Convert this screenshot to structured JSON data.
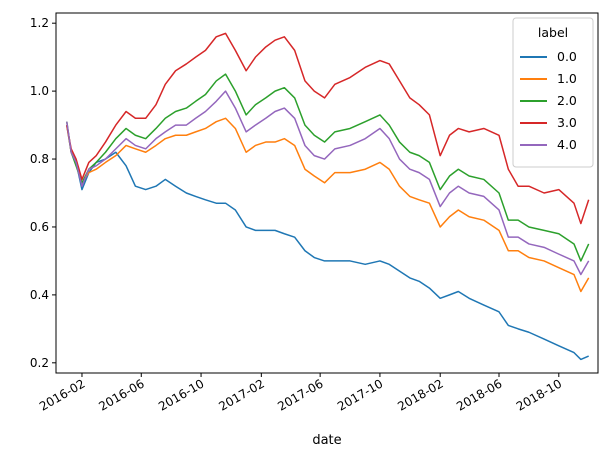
{
  "chart_data": {
    "type": "line",
    "title": "",
    "xlabel": "date",
    "ylabel": "",
    "x_ticks": [
      "2016-02",
      "2016-06",
      "2016-10",
      "2017-02",
      "2017-06",
      "2017-10",
      "2018-02",
      "2018-06",
      "2018-10"
    ],
    "y_ticks": [
      "0.2",
      "0.4",
      "0.6",
      "0.8",
      "1.0",
      "1.2"
    ],
    "xlim": [
      "2015-12-10",
      "2018-12-20"
    ],
    "ylim": [
      0.17,
      1.23
    ],
    "grid": false,
    "legend": {
      "title": "label",
      "placement": "top-right"
    },
    "series": [
      {
        "name": "0.0",
        "color": "#1f77b4",
        "points": [
          [
            "2016-01-01",
            0.9
          ],
          [
            "2016-01-10",
            0.82
          ],
          [
            "2016-01-20",
            0.79
          ],
          [
            "2016-02-01",
            0.71
          ],
          [
            "2016-02-15",
            0.76
          ],
          [
            "2016-03-01",
            0.79
          ],
          [
            "2016-03-20",
            0.8
          ],
          [
            "2016-04-10",
            0.82
          ],
          [
            "2016-05-01",
            0.78
          ],
          [
            "2016-05-20",
            0.72
          ],
          [
            "2016-06-10",
            0.71
          ],
          [
            "2016-07-01",
            0.72
          ],
          [
            "2016-07-20",
            0.74
          ],
          [
            "2016-08-10",
            0.72
          ],
          [
            "2016-09-01",
            0.7
          ],
          [
            "2016-09-20",
            0.69
          ],
          [
            "2016-10-10",
            0.68
          ],
          [
            "2016-11-01",
            0.67
          ],
          [
            "2016-11-20",
            0.67
          ],
          [
            "2016-12-10",
            0.65
          ],
          [
            "2017-01-01",
            0.6
          ],
          [
            "2017-01-20",
            0.59
          ],
          [
            "2017-02-10",
            0.59
          ],
          [
            "2017-03-01",
            0.59
          ],
          [
            "2017-03-20",
            0.58
          ],
          [
            "2017-04-10",
            0.57
          ],
          [
            "2017-05-01",
            0.53
          ],
          [
            "2017-05-20",
            0.51
          ],
          [
            "2017-06-10",
            0.5
          ],
          [
            "2017-07-01",
            0.5
          ],
          [
            "2017-08-01",
            0.5
          ],
          [
            "2017-09-01",
            0.49
          ],
          [
            "2017-10-01",
            0.5
          ],
          [
            "2017-10-20",
            0.49
          ],
          [
            "2017-11-10",
            0.47
          ],
          [
            "2017-12-01",
            0.45
          ],
          [
            "2017-12-20",
            0.44
          ],
          [
            "2018-01-10",
            0.42
          ],
          [
            "2018-02-01",
            0.39
          ],
          [
            "2018-02-20",
            0.4
          ],
          [
            "2018-03-10",
            0.41
          ],
          [
            "2018-04-01",
            0.39
          ],
          [
            "2018-05-01",
            0.37
          ],
          [
            "2018-06-01",
            0.35
          ],
          [
            "2018-06-20",
            0.31
          ],
          [
            "2018-07-10",
            0.3
          ],
          [
            "2018-08-01",
            0.29
          ],
          [
            "2018-09-01",
            0.27
          ],
          [
            "2018-10-01",
            0.25
          ],
          [
            "2018-11-01",
            0.23
          ],
          [
            "2018-11-15",
            0.21
          ],
          [
            "2018-12-01",
            0.22
          ]
        ]
      },
      {
        "name": "1.0",
        "color": "#ff7f0e",
        "points": [
          [
            "2016-01-01",
            0.9
          ],
          [
            "2016-01-10",
            0.82
          ],
          [
            "2016-01-20",
            0.79
          ],
          [
            "2016-02-01",
            0.73
          ],
          [
            "2016-02-15",
            0.76
          ],
          [
            "2016-03-01",
            0.77
          ],
          [
            "2016-03-20",
            0.79
          ],
          [
            "2016-04-10",
            0.81
          ],
          [
            "2016-05-01",
            0.84
          ],
          [
            "2016-05-20",
            0.83
          ],
          [
            "2016-06-10",
            0.82
          ],
          [
            "2016-07-01",
            0.84
          ],
          [
            "2016-07-20",
            0.86
          ],
          [
            "2016-08-10",
            0.87
          ],
          [
            "2016-09-01",
            0.87
          ],
          [
            "2016-09-20",
            0.88
          ],
          [
            "2016-10-10",
            0.89
          ],
          [
            "2016-11-01",
            0.91
          ],
          [
            "2016-11-20",
            0.92
          ],
          [
            "2016-12-10",
            0.89
          ],
          [
            "2017-01-01",
            0.82
          ],
          [
            "2017-01-20",
            0.84
          ],
          [
            "2017-02-10",
            0.85
          ],
          [
            "2017-03-01",
            0.85
          ],
          [
            "2017-03-20",
            0.86
          ],
          [
            "2017-04-10",
            0.84
          ],
          [
            "2017-05-01",
            0.77
          ],
          [
            "2017-05-20",
            0.75
          ],
          [
            "2017-06-10",
            0.73
          ],
          [
            "2017-07-01",
            0.76
          ],
          [
            "2017-08-01",
            0.76
          ],
          [
            "2017-09-01",
            0.77
          ],
          [
            "2017-10-01",
            0.79
          ],
          [
            "2017-10-20",
            0.77
          ],
          [
            "2017-11-10",
            0.72
          ],
          [
            "2017-12-01",
            0.69
          ],
          [
            "2017-12-20",
            0.68
          ],
          [
            "2018-01-10",
            0.67
          ],
          [
            "2018-02-01",
            0.6
          ],
          [
            "2018-02-20",
            0.63
          ],
          [
            "2018-03-10",
            0.65
          ],
          [
            "2018-04-01",
            0.63
          ],
          [
            "2018-05-01",
            0.62
          ],
          [
            "2018-06-01",
            0.59
          ],
          [
            "2018-06-20",
            0.53
          ],
          [
            "2018-07-10",
            0.53
          ],
          [
            "2018-08-01",
            0.51
          ],
          [
            "2018-09-01",
            0.5
          ],
          [
            "2018-10-01",
            0.48
          ],
          [
            "2018-11-01",
            0.46
          ],
          [
            "2018-11-15",
            0.41
          ],
          [
            "2018-12-01",
            0.45
          ]
        ]
      },
      {
        "name": "2.0",
        "color": "#2ca02c",
        "points": [
          [
            "2016-01-01",
            0.91
          ],
          [
            "2016-01-10",
            0.82
          ],
          [
            "2016-01-20",
            0.78
          ],
          [
            "2016-02-01",
            0.73
          ],
          [
            "2016-02-15",
            0.77
          ],
          [
            "2016-03-01",
            0.79
          ],
          [
            "2016-03-20",
            0.82
          ],
          [
            "2016-04-10",
            0.86
          ],
          [
            "2016-05-01",
            0.89
          ],
          [
            "2016-05-20",
            0.87
          ],
          [
            "2016-06-10",
            0.86
          ],
          [
            "2016-07-01",
            0.89
          ],
          [
            "2016-07-20",
            0.92
          ],
          [
            "2016-08-10",
            0.94
          ],
          [
            "2016-09-01",
            0.95
          ],
          [
            "2016-09-20",
            0.97
          ],
          [
            "2016-10-10",
            0.99
          ],
          [
            "2016-11-01",
            1.03
          ],
          [
            "2016-11-20",
            1.05
          ],
          [
            "2016-12-10",
            1.0
          ],
          [
            "2017-01-01",
            0.93
          ],
          [
            "2017-01-20",
            0.96
          ],
          [
            "2017-02-10",
            0.98
          ],
          [
            "2017-03-01",
            1.0
          ],
          [
            "2017-03-20",
            1.01
          ],
          [
            "2017-04-10",
            0.98
          ],
          [
            "2017-05-01",
            0.9
          ],
          [
            "2017-05-20",
            0.87
          ],
          [
            "2017-06-10",
            0.85
          ],
          [
            "2017-07-01",
            0.88
          ],
          [
            "2017-08-01",
            0.89
          ],
          [
            "2017-09-01",
            0.91
          ],
          [
            "2017-10-01",
            0.93
          ],
          [
            "2017-10-20",
            0.9
          ],
          [
            "2017-11-10",
            0.85
          ],
          [
            "2017-12-01",
            0.82
          ],
          [
            "2017-12-20",
            0.81
          ],
          [
            "2018-01-10",
            0.79
          ],
          [
            "2018-02-01",
            0.71
          ],
          [
            "2018-02-20",
            0.75
          ],
          [
            "2018-03-10",
            0.77
          ],
          [
            "2018-04-01",
            0.75
          ],
          [
            "2018-05-01",
            0.74
          ],
          [
            "2018-06-01",
            0.7
          ],
          [
            "2018-06-20",
            0.62
          ],
          [
            "2018-07-10",
            0.62
          ],
          [
            "2018-08-01",
            0.6
          ],
          [
            "2018-09-01",
            0.59
          ],
          [
            "2018-10-01",
            0.58
          ],
          [
            "2018-11-01",
            0.55
          ],
          [
            "2018-11-15",
            0.5
          ],
          [
            "2018-12-01",
            0.55
          ]
        ]
      },
      {
        "name": "3.0",
        "color": "#d62728",
        "points": [
          [
            "2016-01-01",
            0.9
          ],
          [
            "2016-01-10",
            0.83
          ],
          [
            "2016-01-20",
            0.8
          ],
          [
            "2016-02-01",
            0.74
          ],
          [
            "2016-02-15",
            0.79
          ],
          [
            "2016-03-01",
            0.81
          ],
          [
            "2016-03-20",
            0.85
          ],
          [
            "2016-04-10",
            0.9
          ],
          [
            "2016-05-01",
            0.94
          ],
          [
            "2016-05-20",
            0.92
          ],
          [
            "2016-06-10",
            0.92
          ],
          [
            "2016-07-01",
            0.96
          ],
          [
            "2016-07-20",
            1.02
          ],
          [
            "2016-08-10",
            1.06
          ],
          [
            "2016-09-01",
            1.08
          ],
          [
            "2016-09-20",
            1.1
          ],
          [
            "2016-10-10",
            1.12
          ],
          [
            "2016-11-01",
            1.16
          ],
          [
            "2016-11-20",
            1.17
          ],
          [
            "2016-12-10",
            1.12
          ],
          [
            "2017-01-01",
            1.06
          ],
          [
            "2017-01-20",
            1.1
          ],
          [
            "2017-02-10",
            1.13
          ],
          [
            "2017-03-01",
            1.15
          ],
          [
            "2017-03-20",
            1.16
          ],
          [
            "2017-04-10",
            1.12
          ],
          [
            "2017-05-01",
            1.03
          ],
          [
            "2017-05-20",
            1.0
          ],
          [
            "2017-06-10",
            0.98
          ],
          [
            "2017-07-01",
            1.02
          ],
          [
            "2017-08-01",
            1.04
          ],
          [
            "2017-09-01",
            1.07
          ],
          [
            "2017-10-01",
            1.09
          ],
          [
            "2017-10-20",
            1.08
          ],
          [
            "2017-11-10",
            1.03
          ],
          [
            "2017-12-01",
            0.98
          ],
          [
            "2017-12-20",
            0.96
          ],
          [
            "2018-01-10",
            0.93
          ],
          [
            "2018-02-01",
            0.81
          ],
          [
            "2018-02-20",
            0.87
          ],
          [
            "2018-03-10",
            0.89
          ],
          [
            "2018-04-01",
            0.88
          ],
          [
            "2018-05-01",
            0.89
          ],
          [
            "2018-06-01",
            0.87
          ],
          [
            "2018-06-20",
            0.77
          ],
          [
            "2018-07-10",
            0.72
          ],
          [
            "2018-08-01",
            0.72
          ],
          [
            "2018-09-01",
            0.7
          ],
          [
            "2018-10-01",
            0.71
          ],
          [
            "2018-11-01",
            0.67
          ],
          [
            "2018-11-15",
            0.61
          ],
          [
            "2018-12-01",
            0.68
          ]
        ]
      },
      {
        "name": "4.0",
        "color": "#9467bd",
        "points": [
          [
            "2016-01-01",
            0.91
          ],
          [
            "2016-01-10",
            0.82
          ],
          [
            "2016-01-20",
            0.79
          ],
          [
            "2016-02-01",
            0.72
          ],
          [
            "2016-02-15",
            0.77
          ],
          [
            "2016-03-01",
            0.78
          ],
          [
            "2016-03-20",
            0.8
          ],
          [
            "2016-04-10",
            0.83
          ],
          [
            "2016-05-01",
            0.86
          ],
          [
            "2016-05-20",
            0.84
          ],
          [
            "2016-06-10",
            0.83
          ],
          [
            "2016-07-01",
            0.86
          ],
          [
            "2016-07-20",
            0.88
          ],
          [
            "2016-08-10",
            0.9
          ],
          [
            "2016-09-01",
            0.9
          ],
          [
            "2016-09-20",
            0.92
          ],
          [
            "2016-10-10",
            0.94
          ],
          [
            "2016-11-01",
            0.97
          ],
          [
            "2016-11-20",
            1.0
          ],
          [
            "2016-12-10",
            0.95
          ],
          [
            "2017-01-01",
            0.88
          ],
          [
            "2017-01-20",
            0.9
          ],
          [
            "2017-02-10",
            0.92
          ],
          [
            "2017-03-01",
            0.94
          ],
          [
            "2017-03-20",
            0.95
          ],
          [
            "2017-04-10",
            0.92
          ],
          [
            "2017-05-01",
            0.84
          ],
          [
            "2017-05-20",
            0.81
          ],
          [
            "2017-06-10",
            0.8
          ],
          [
            "2017-07-01",
            0.83
          ],
          [
            "2017-08-01",
            0.84
          ],
          [
            "2017-09-01",
            0.86
          ],
          [
            "2017-10-01",
            0.89
          ],
          [
            "2017-10-20",
            0.86
          ],
          [
            "2017-11-10",
            0.8
          ],
          [
            "2017-12-01",
            0.77
          ],
          [
            "2017-12-20",
            0.76
          ],
          [
            "2018-01-10",
            0.74
          ],
          [
            "2018-02-01",
            0.66
          ],
          [
            "2018-02-20",
            0.7
          ],
          [
            "2018-03-10",
            0.72
          ],
          [
            "2018-04-01",
            0.7
          ],
          [
            "2018-05-01",
            0.69
          ],
          [
            "2018-06-01",
            0.65
          ],
          [
            "2018-06-20",
            0.57
          ],
          [
            "2018-07-10",
            0.57
          ],
          [
            "2018-08-01",
            0.55
          ],
          [
            "2018-09-01",
            0.54
          ],
          [
            "2018-10-01",
            0.52
          ],
          [
            "2018-11-01",
            0.5
          ],
          [
            "2018-11-15",
            0.46
          ],
          [
            "2018-12-01",
            0.5
          ]
        ]
      }
    ]
  }
}
